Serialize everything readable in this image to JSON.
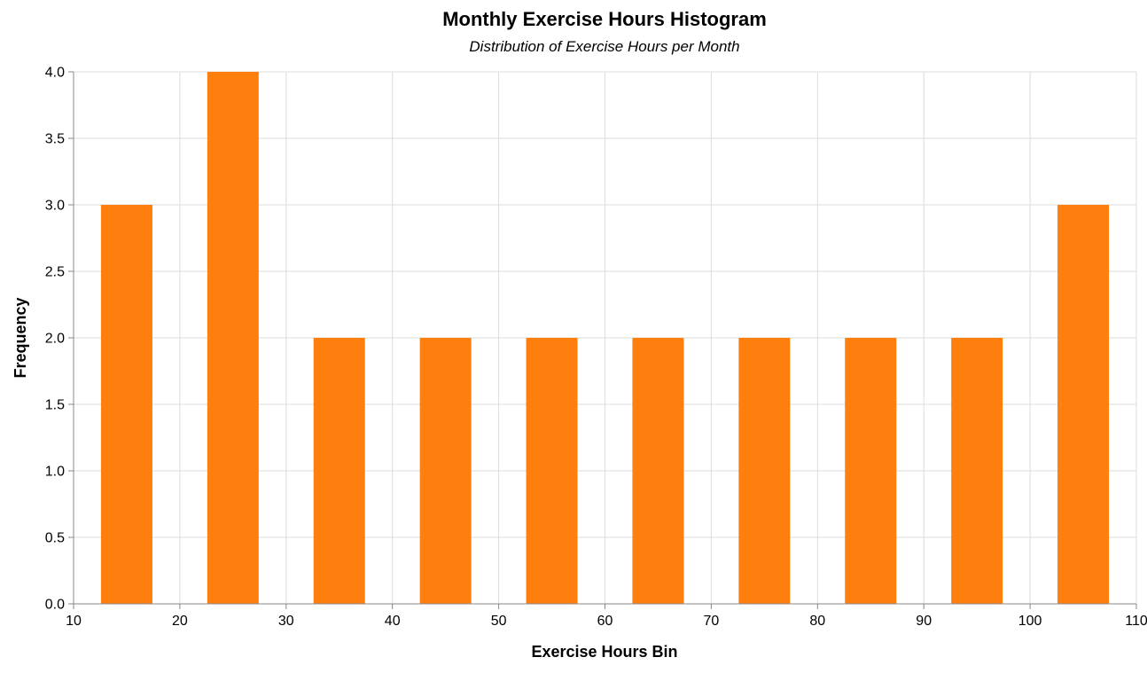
{
  "chart_data": {
    "type": "bar",
    "title": "Monthly Exercise Hours Histogram",
    "subtitle": "Distribution of Exercise Hours per Month",
    "xlabel": "Exercise Hours Bin",
    "ylabel": "Frequency",
    "bins": [
      {
        "start": 10,
        "end": 20,
        "value": 3
      },
      {
        "start": 20,
        "end": 30,
        "value": 4
      },
      {
        "start": 30,
        "end": 40,
        "value": 2
      },
      {
        "start": 40,
        "end": 50,
        "value": 2
      },
      {
        "start": 50,
        "end": 60,
        "value": 2
      },
      {
        "start": 60,
        "end": 70,
        "value": 2
      },
      {
        "start": 70,
        "end": 80,
        "value": 2
      },
      {
        "start": 80,
        "end": 90,
        "value": 2
      },
      {
        "start": 90,
        "end": 100,
        "value": 2
      },
      {
        "start": 100,
        "end": 110,
        "value": 3
      }
    ],
    "xlim": [
      10,
      110
    ],
    "ylim": [
      0,
      4
    ],
    "x_ticks": [
      "10",
      "20",
      "30",
      "40",
      "50",
      "60",
      "70",
      "80",
      "90",
      "100",
      "110"
    ],
    "y_ticks": [
      "0.0",
      "0.5",
      "1.0",
      "1.5",
      "2.0",
      "2.5",
      "3.0",
      "3.5",
      "4.0"
    ],
    "grid": true,
    "bar_color": "#ff7f0e"
  }
}
